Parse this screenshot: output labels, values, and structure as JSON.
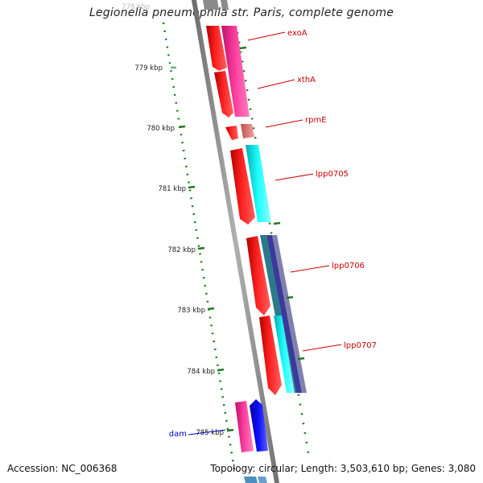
{
  "title": "Legionella pneumophila str. Paris, complete genome",
  "footer": {
    "accession": "Accession: NC_006368",
    "summary": "Topology: circular; Length: 3,503,610 bp; Genes: 3,080"
  },
  "colors": {
    "backbone": "#888888",
    "tick": "#1f7a1f",
    "tick_label": "#222222",
    "gene_label": "#cc0000",
    "gene_label_alt": "#0000cc",
    "forward_cds": "#ff0000",
    "reverse_cds": "#ff1493",
    "cyan_cds": "#00e5e5",
    "blue_cds": "#0000ff"
  },
  "ticks": [
    {
      "label": "778 kbp",
      "faded": true
    },
    {
      "label": "779 kbp"
    },
    {
      "label": "780 kbp"
    },
    {
      "label": "781 kbp"
    },
    {
      "label": "782 kbp"
    },
    {
      "label": "783 kbp"
    },
    {
      "label": "784 kbp"
    },
    {
      "label": "785 kbp"
    }
  ],
  "genes": [
    {
      "label": "exoA",
      "color_key": "gene_label"
    },
    {
      "label": "xthA",
      "color_key": "gene_label"
    },
    {
      "label": "rpmE",
      "color_key": "gene_label"
    },
    {
      "label": "lpp0705",
      "color_key": "gene_label"
    },
    {
      "label": "lpp0706",
      "color_key": "gene_label"
    },
    {
      "label": "lpp0707",
      "color_key": "gene_label"
    },
    {
      "label": "dam",
      "color_key": "gene_label_alt"
    }
  ]
}
